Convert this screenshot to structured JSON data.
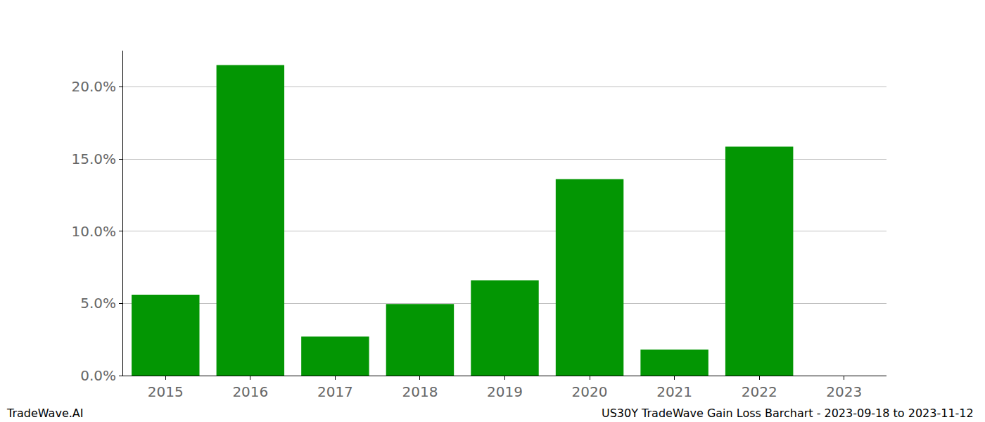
{
  "chart_data": {
    "type": "bar",
    "categories": [
      "2015",
      "2016",
      "2017",
      "2018",
      "2019",
      "2020",
      "2021",
      "2022",
      "2023"
    ],
    "values": [
      5.6,
      21.5,
      2.7,
      4.95,
      6.6,
      13.6,
      1.8,
      15.85,
      0
    ],
    "color": "#039603",
    "ylim": [
      0,
      22.5
    ],
    "yticks": [
      {
        "value": 0,
        "label": "0.0%"
      },
      {
        "value": 5,
        "label": "5.0%"
      },
      {
        "value": 10,
        "label": "10.0%"
      },
      {
        "value": 15,
        "label": "15.0%"
      },
      {
        "value": 20,
        "label": "20.0%"
      }
    ],
    "grid": true,
    "annotations": [
      "TradeWave.AI",
      "US30Y TradeWave Gain Loss Barchart - 2023-09-18 to 2023-11-12"
    ]
  }
}
